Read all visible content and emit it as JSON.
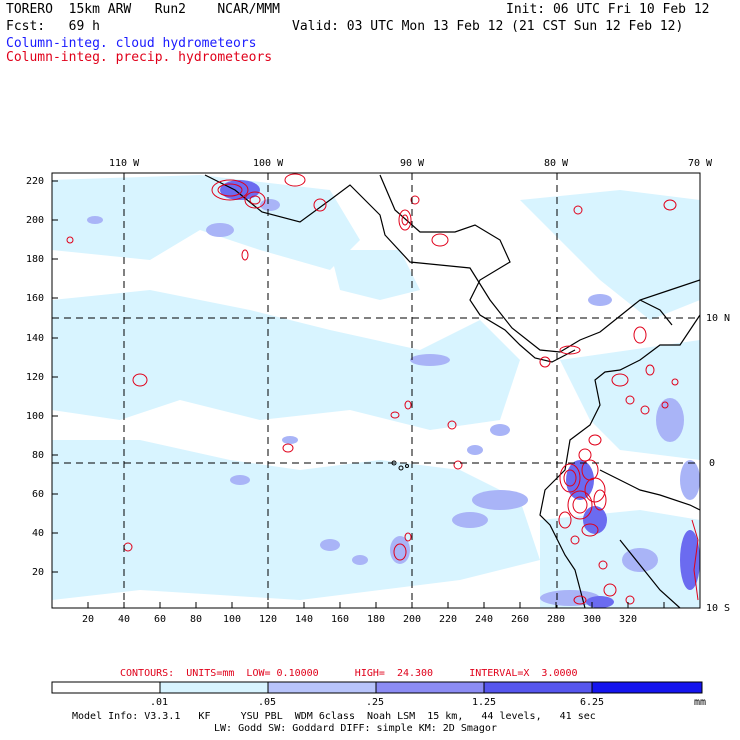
{
  "header": {
    "model": "TORERO  15km ARW   Run2    NCAR/MMM",
    "init": "Init: 06 UTC Fri 10 Feb 12",
    "fcst": "Fcst:   69 h",
    "valid": "Valid: 03 UTC Mon 13 Feb 12 (21 CST Sun 12 Feb 12)",
    "field_cloud": "Column-integ. cloud hydrometeors",
    "field_precip": "Column-integ. precip. hydrometeors"
  },
  "map": {
    "lon_labels": [
      "110 W",
      "100 W",
      "90 W",
      "80 W",
      "70 W"
    ],
    "lat_labels": [
      "10 N",
      "0",
      "10 S"
    ],
    "y_ticks": [
      "220",
      "200",
      "180",
      "160",
      "140",
      "120",
      "100",
      "80",
      "60",
      "40",
      "20"
    ],
    "x_ticks": [
      "20",
      "40",
      "60",
      "80",
      "100",
      "120",
      "140",
      "160",
      "180",
      "200",
      "220",
      "240",
      "260",
      "280",
      "300",
      "320"
    ],
    "colors": {
      "cloud_light": "#d8f4ff",
      "cloud_mid": "#a9b4f7",
      "cloud_dark": "#6b6bf0",
      "precip": "#e0001a",
      "coast": "#000000"
    }
  },
  "contours": {
    "label": "CONTOURS:  UNITS=mm  LOW= 0.10000      HIGH=  24.300      INTERVAL=X  3.0000"
  },
  "colorbar": {
    "labels": [
      ".01",
      ".05",
      ".25",
      "1.25",
      "6.25"
    ],
    "unit": "mm",
    "colors": [
      "#ffffff",
      "#d8f4ff",
      "#b8c4fb",
      "#8c8cf4",
      "#6a6af0",
      "#3030f0",
      "#1010ee"
    ]
  },
  "footer": {
    "line1": "Model Info: V3.3.1   KF     YSU PBL  WDM 6class  Noah LSM  15 km,   44 levels,   41 sec",
    "line2": "LW: Godd SW: Goddard DIFF: simple KM: 2D Smagor"
  }
}
